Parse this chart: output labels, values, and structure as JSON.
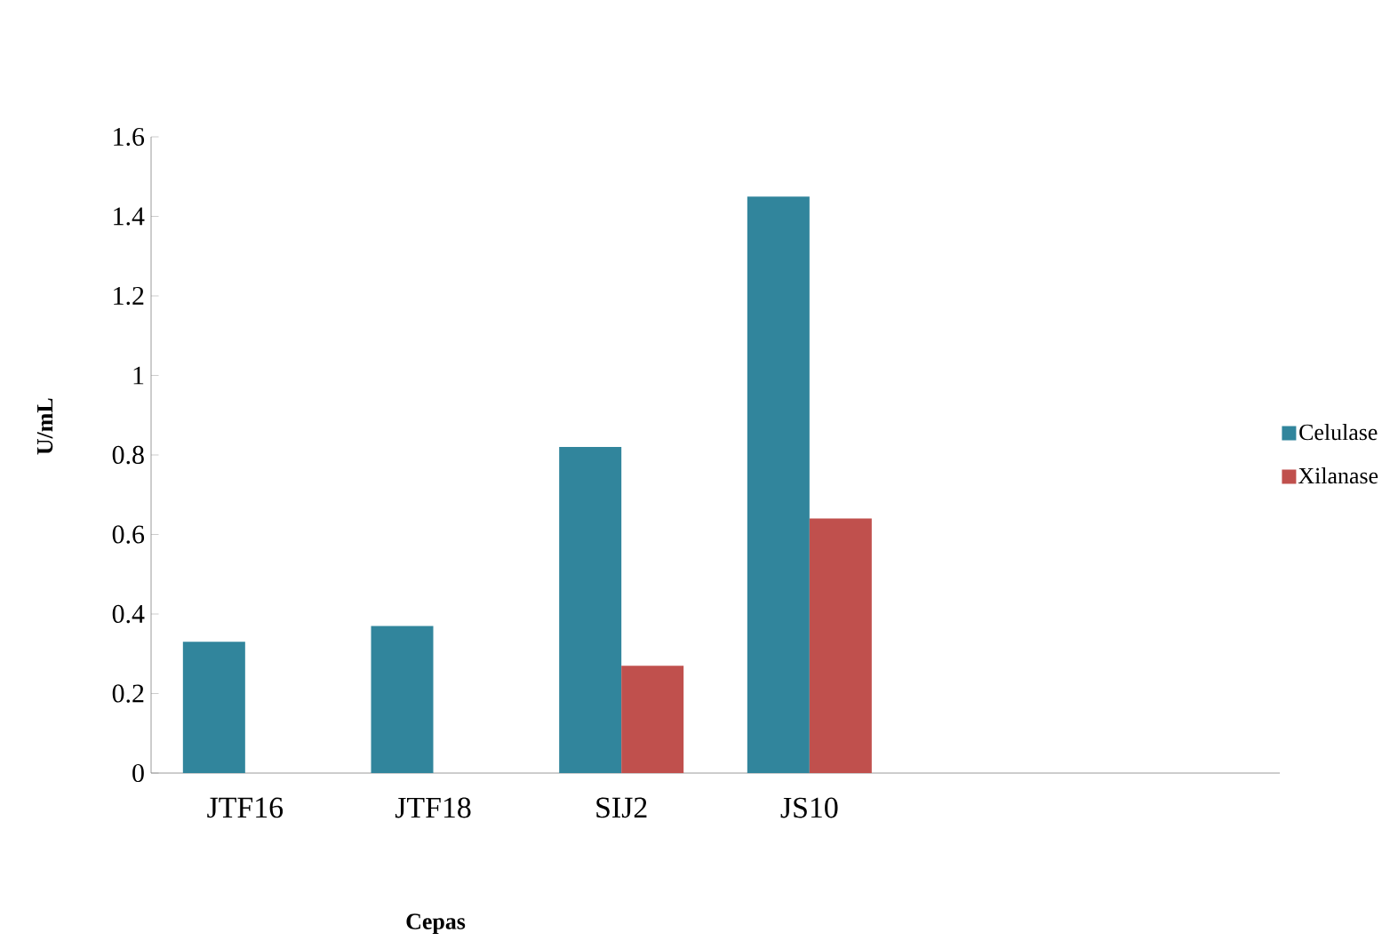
{
  "chart_data": {
    "type": "bar",
    "xlabel": "Cepas",
    "ylabel": "U/mL",
    "categories": [
      "JTF16",
      "JTF18",
      "SIJ2",
      "JS10",
      null,
      null
    ],
    "series": [
      {
        "name": "Celulase",
        "color": "#31859c",
        "values": [
          0.33,
          0.37,
          0.82,
          1.45,
          null,
          null
        ]
      },
      {
        "name": "Xilanase",
        "color": "#c0504d",
        "values": [
          null,
          null,
          0.27,
          0.64,
          null,
          null
        ]
      }
    ],
    "ylim": [
      0,
      1.6
    ],
    "yticks": [
      0,
      0.2,
      0.4,
      0.6,
      0.8,
      1,
      1.2,
      1.4,
      1.6
    ],
    "grid": false,
    "legend": "right"
  }
}
